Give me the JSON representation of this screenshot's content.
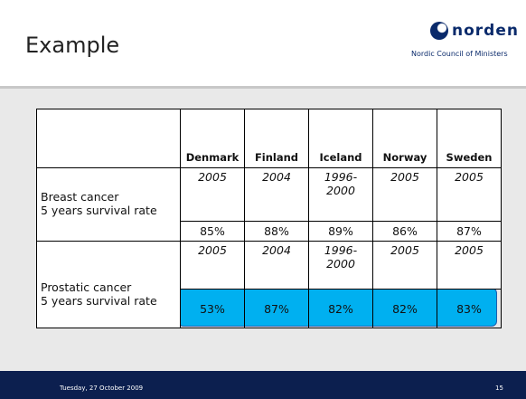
{
  "header": {
    "title": "Example",
    "logo": "norden",
    "logo_subtitle": "Nordic Council of Ministers"
  },
  "table": {
    "columns": [
      "Denmark",
      "Finland",
      "Iceland",
      "Norway",
      "Sweden"
    ],
    "rows": [
      {
        "label": [
          "Breast cancer",
          "5 years survival rate"
        ],
        "years": [
          "2005",
          "2004",
          "1996-2000",
          "2005",
          "2005"
        ],
        "values": [
          "85%",
          "88%",
          "89%",
          "86%",
          "87%"
        ]
      },
      {
        "label": [
          "Prostatic cancer",
          "5 years survival rate"
        ],
        "years": [
          "2005",
          "2004",
          "1996-2000",
          "2005",
          "2005"
        ],
        "values": [
          "53%",
          "87%",
          "82%",
          "82%",
          "83%"
        ]
      }
    ]
  },
  "footer": {
    "date": "Tuesday, 27 October 2009",
    "page": "15"
  }
}
